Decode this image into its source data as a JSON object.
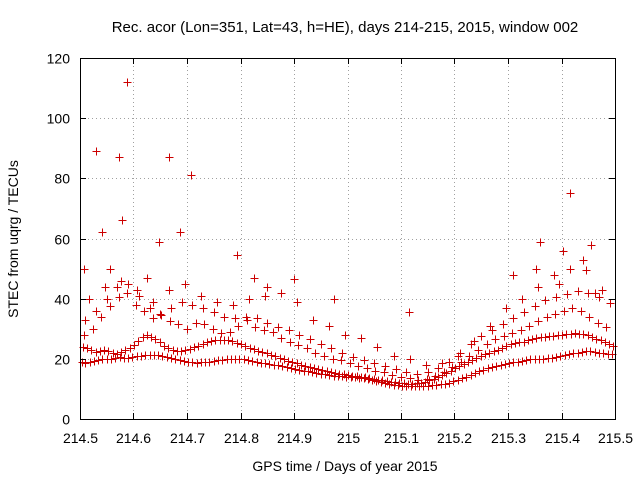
{
  "chart_data": {
    "type": "scatter",
    "title": "Rec. acor (Lon=351, Lat=43, h=HE), days 214-215, 2015, window 002",
    "xlabel": "GPS time / Days of year 2015",
    "ylabel": "STEC from uqrg / TECUs",
    "xlim": [
      214.5,
      215.5
    ],
    "ylim": [
      0,
      120
    ],
    "xticks": [
      "214.5",
      "214.6",
      "214.7",
      "214.8",
      "214.9",
      "215",
      "215.1",
      "215.2",
      "215.3",
      "215.4",
      "215.5"
    ],
    "yticks": [
      "0",
      "20",
      "40",
      "60",
      "80",
      "100",
      "120"
    ],
    "grid": true,
    "marker": "+",
    "color": "#cc0000",
    "series": [
      {
        "x": [
          214.503,
          214.51,
          214.518,
          214.526,
          214.534,
          214.542,
          214.55,
          214.558,
          214.566,
          214.574,
          214.582,
          214.59,
          214.598,
          214.606,
          214.614,
          214.622,
          214.63,
          214.638,
          214.646,
          214.654,
          214.662,
          214.67,
          214.678,
          214.686,
          214.694,
          214.702,
          214.71,
          214.718,
          214.726,
          214.734,
          214.742,
          214.75,
          214.758,
          214.766,
          214.774,
          214.782,
          214.79,
          214.798,
          214.806,
          214.814,
          214.822,
          214.83,
          214.838,
          214.846,
          214.854,
          214.862,
          214.87,
          214.878,
          214.886,
          214.894,
          214.902,
          214.91,
          214.918,
          214.926,
          214.934,
          214.942,
          214.95,
          214.958,
          214.966,
          214.974,
          214.982,
          214.99,
          214.998,
          215.006,
          215.014,
          215.022,
          215.03,
          215.038,
          215.046,
          215.054,
          215.062,
          215.07,
          215.078,
          215.086,
          215.094,
          215.102,
          215.11,
          215.118,
          215.126,
          215.134,
          215.142,
          215.15,
          215.158,
          215.166,
          215.174,
          215.182,
          215.19,
          215.198,
          215.206,
          215.214,
          215.222,
          215.23,
          215.238,
          215.246,
          215.254,
          215.262,
          215.27,
          215.278,
          215.286,
          215.294,
          215.302,
          215.31,
          215.318,
          215.326,
          215.334,
          215.342,
          215.35,
          215.358,
          215.366,
          215.374,
          215.382,
          215.39,
          215.398,
          215.406,
          215.414,
          215.422,
          215.43,
          215.438,
          215.446,
          215.454,
          215.462,
          215.47,
          215.478,
          215.486,
          215.494
        ],
        "y": [
          19,
          18.5,
          18.8,
          19.2,
          19.6,
          19.8,
          20,
          20.1,
          20.3,
          20.5,
          20.4,
          20.2,
          20.6,
          20.9,
          21.1,
          21.2,
          21.3,
          21.4,
          21.2,
          21,
          20.7,
          20.3,
          19.9,
          19.5,
          19.2,
          18.9,
          18.8,
          18.7,
          18.8,
          18.9,
          19.1,
          19.3,
          19.5,
          19.7,
          19.9,
          20.1,
          20.1,
          20,
          19.8,
          19.5,
          19.2,
          18.9,
          18.7,
          18.5,
          18.3,
          18.1,
          17.9,
          17.6,
          17.3,
          17,
          16.7,
          16.4,
          16.1,
          15.8,
          15.5,
          15.2,
          15,
          14.8,
          14.6,
          14.4,
          14.3,
          14.2,
          14.1,
          14,
          13.9,
          13.7,
          13.5,
          13.2,
          12.9,
          12.6,
          12.3,
          12,
          11.7,
          11.4,
          11.2,
          11,
          10.9,
          10.9,
          11,
          11.1,
          11.1,
          11.1,
          11.2,
          11.3,
          11.5,
          11.8,
          12.1,
          12.5,
          13,
          13.5,
          14.1,
          14.7,
          15.3,
          15.9,
          16.4,
          16.9,
          17.3,
          17.6,
          17.9,
          18.2,
          18.5,
          18.8,
          19.1,
          19.4,
          19.6,
          19.8,
          20,
          20.1,
          20.1,
          20.2,
          20.4,
          20.7,
          21,
          21.3,
          21.6,
          21.9,
          22.1,
          22.3,
          22.5,
          22.6,
          22.4,
          22.1,
          21.9,
          21.7,
          21.5
        ]
      },
      {
        "x": [
          214.505,
          214.513,
          214.521,
          214.529,
          214.537,
          214.545,
          214.553,
          214.561,
          214.569,
          214.577,
          214.585,
          214.593,
          214.601,
          214.609,
          214.617,
          214.625,
          214.633,
          214.641,
          214.649,
          214.657,
          214.665,
          214.673,
          214.681,
          214.689,
          214.697,
          214.705,
          214.713,
          214.721,
          214.729,
          214.737,
          214.745,
          214.753,
          214.761,
          214.769,
          214.777,
          214.785,
          214.793,
          214.801,
          214.809,
          214.817,
          214.825,
          214.833,
          214.841,
          214.849,
          214.857,
          214.865,
          214.873,
          214.881,
          214.889,
          214.897,
          214.905,
          214.913,
          214.921,
          214.929,
          214.937,
          214.945,
          214.953,
          214.961,
          214.969,
          214.977,
          214.985,
          214.993,
          215.001,
          215.009,
          215.017,
          215.025,
          215.033,
          215.041,
          215.049,
          215.057,
          215.065,
          215.073,
          215.081,
          215.089,
          215.097,
          215.105,
          215.113,
          215.121,
          215.129,
          215.137,
          215.145,
          215.153,
          215.161,
          215.169,
          215.177,
          215.185,
          215.193,
          215.201,
          215.209,
          215.217,
          215.225,
          215.233,
          215.241,
          215.249,
          215.257,
          215.265,
          215.273,
          215.281,
          215.289,
          215.297,
          215.305,
          215.313,
          215.321,
          215.329,
          215.337,
          215.345,
          215.353,
          215.361,
          215.369,
          215.377,
          215.385,
          215.393,
          215.401,
          215.409,
          215.417,
          215.425,
          215.433,
          215.441,
          215.449,
          215.457,
          215.465,
          215.473,
          215.481,
          215.489,
          215.497
        ],
        "y": [
          24,
          23.5,
          22.8,
          22.2,
          22.5,
          23,
          22.5,
          22,
          21.6,
          22.4,
          22.9,
          23.5,
          24.5,
          26,
          27.3,
          27.8,
          27.4,
          26.6,
          25.5,
          24.4,
          23.6,
          23,
          22.7,
          22.6,
          22.9,
          23.3,
          23.8,
          24.4,
          25,
          25.5,
          25.9,
          26.1,
          26.3,
          26.4,
          26.2,
          25.9,
          25.4,
          24.9,
          24.3,
          23.7,
          23.2,
          22.7,
          22.3,
          21.8,
          21.3,
          20.8,
          20.3,
          19.8,
          19.3,
          18.9,
          18.5,
          18.1,
          17.7,
          17.4,
          17,
          16.7,
          16.3,
          16,
          15.7,
          15.4,
          15.1,
          14.9,
          14.6,
          14.4,
          14.2,
          14,
          13.8,
          13.6,
          13.4,
          13.1,
          12.9,
          12.6,
          12.4,
          12.2,
          12,
          11.9,
          11.8,
          11.8,
          11.9,
          12.1,
          12.4,
          12.8,
          13.3,
          13.9,
          14.6,
          15.3,
          16,
          16.8,
          17.5,
          18.2,
          18.9,
          19.5,
          20.2,
          20.9,
          21.5,
          22,
          22.5,
          23.1,
          23.7,
          24.3,
          24.9,
          25.3,
          25.5,
          25.7,
          26.1,
          26.5,
          26.8,
          27.1,
          27.4,
          27.6,
          27.7,
          27.9,
          28,
          28.1,
          28.3,
          28.5,
          28.4,
          28.1,
          27.8,
          27.3,
          26.7,
          26.1,
          25.5,
          24.9,
          24.3
        ]
      },
      {
        "x": [
          214.508,
          214.524,
          214.54,
          214.556,
          214.572,
          214.588,
          214.604,
          214.62,
          214.636,
          214.652,
          214.668,
          214.684,
          214.7,
          214.716,
          214.732,
          214.748,
          214.764,
          214.78,
          214.796,
          214.812,
          214.828,
          214.844,
          214.86,
          214.876,
          214.892,
          214.908,
          214.924,
          214.94,
          214.956,
          214.972,
          214.988,
          215.004,
          215.02,
          215.036,
          215.052,
          215.068,
          215.084,
          215.1,
          215.116,
          215.132,
          215.148,
          215.164,
          215.18,
          215.196,
          215.212,
          215.228,
          215.244,
          215.26,
          215.276,
          215.292,
          215.308,
          215.324,
          215.34,
          215.356,
          215.372,
          215.388,
          215.404,
          215.42,
          215.436,
          215.452,
          215.468,
          215.484
        ],
        "y": [
          28,
          30,
          34,
          37.5,
          40.5,
          42,
          38,
          36,
          33.5,
          34.5,
          32.5,
          31.5,
          30,
          32,
          31.5,
          30,
          28.5,
          29,
          31,
          33,
          30.5,
          29.5,
          29,
          27,
          25.5,
          24.5,
          23.5,
          22,
          21,
          20,
          19.5,
          18.5,
          17.5,
          17,
          16,
          15.5,
          14.5,
          14,
          13.5,
          13,
          13.3,
          14.2,
          15.5,
          17.2,
          19,
          21,
          23,
          25,
          26.5,
          27.5,
          28.5,
          29.5,
          31,
          32.5,
          34,
          35,
          36,
          37,
          36,
          34,
          32,
          30.5
        ]
      },
      {
        "x": [
          214.51,
          214.53,
          214.55,
          214.57,
          214.59,
          214.61,
          214.63,
          214.65,
          214.67,
          214.69,
          214.71,
          214.73,
          214.75,
          214.77,
          214.79,
          214.81,
          214.83,
          214.85,
          214.87,
          214.89,
          214.91,
          214.93,
          214.95,
          214.97,
          214.99,
          215.01,
          215.03,
          215.05,
          215.07,
          215.09,
          215.11,
          215.13,
          215.15,
          215.17,
          215.19,
          215.21,
          215.23,
          215.25,
          215.27,
          215.29,
          215.31,
          215.33,
          215.35,
          215.37,
          215.39,
          215.41,
          215.43,
          215.45,
          215.47,
          215.49
        ],
        "y": [
          33,
          36,
          40,
          44,
          45,
          41,
          37,
          35,
          37,
          39,
          38,
          37,
          35.5,
          34,
          33.5,
          34,
          33.5,
          32,
          30.5,
          29.5,
          28,
          26.5,
          25,
          23.5,
          22,
          20.5,
          19.5,
          18.5,
          17.5,
          16.5,
          15.5,
          15,
          15.5,
          17,
          19,
          22,
          25,
          27.5,
          29.5,
          31.5,
          33.5,
          35.5,
          37.5,
          39.5,
          40.5,
          41.5,
          42.5,
          42,
          40.5,
          38.5
        ]
      },
      {
        "x": [
          214.516,
          214.546,
          214.576,
          214.606,
          214.636,
          214.666,
          214.696,
          214.726,
          214.756,
          214.786,
          214.816,
          214.846,
          214.876,
          214.906,
          214.936,
          214.966,
          214.996,
          215.026,
          215.056,
          215.086,
          215.116,
          215.146,
          215.176,
          215.206,
          215.236,
          215.266,
          215.296,
          215.326,
          215.356,
          215.386,
          215.416,
          215.446,
          215.476
        ],
        "y": [
          40,
          44,
          46,
          43,
          39,
          43,
          45,
          41,
          39,
          38,
          40,
          41,
          42,
          39,
          33,
          31,
          28,
          27,
          24,
          21,
          20,
          18,
          18.5,
          21,
          26,
          31,
          37,
          40,
          44,
          48,
          50,
          49.5,
          43
        ]
      },
      {
        "x": [
          214.507,
          214.53,
          214.541,
          214.557,
          214.573,
          214.579,
          214.587,
          214.625,
          214.647,
          214.666,
          214.686,
          214.707,
          214.793,
          214.825,
          214.85,
          214.9,
          214.975,
          215.115,
          215.31,
          215.352,
          215.36,
          215.395,
          215.403,
          215.415,
          215.44,
          215.456,
          215.462
        ],
        "y": [
          50,
          89,
          62,
          50,
          87,
          66,
          112,
          47,
          59,
          87,
          62,
          81,
          54.5,
          47,
          44,
          46.5,
          40,
          35.5,
          48,
          50,
          59,
          45,
          56,
          75,
          53,
          58,
          42
        ]
      }
    ]
  }
}
